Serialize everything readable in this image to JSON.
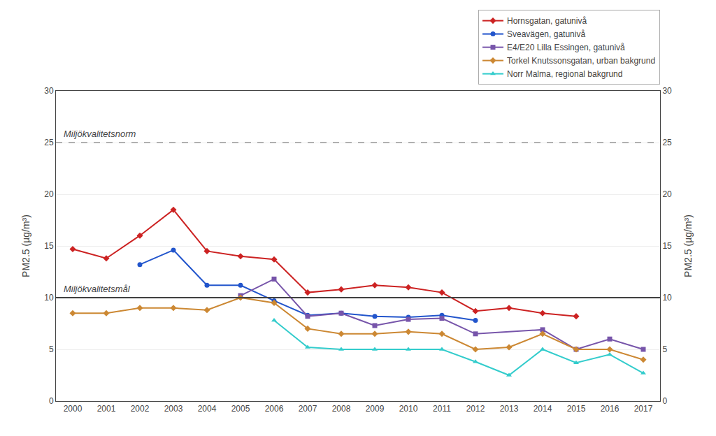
{
  "chart_data": {
    "type": "line",
    "y_label": "PM2.5 (µg/m³)",
    "y2_label": "PM2.5 (µg/m³)",
    "x": [
      2000,
      2001,
      2002,
      2003,
      2004,
      2005,
      2006,
      2007,
      2008,
      2009,
      2010,
      2011,
      2012,
      2013,
      2014,
      2015,
      2016,
      2017
    ],
    "xlim": [
      1999.5,
      2017.5
    ],
    "xticks": [
      2000,
      2001,
      2002,
      2003,
      2004,
      2005,
      2006,
      2007,
      2008,
      2009,
      2010,
      2011,
      2012,
      2013,
      2014,
      2015,
      2016,
      2017
    ],
    "ylim": [
      0,
      30
    ],
    "yticks": [
      0,
      5,
      10,
      15,
      20,
      25,
      30
    ],
    "y2lim": [
      0,
      30
    ],
    "y2ticks": [
      0,
      5,
      10,
      15,
      20,
      25,
      30
    ],
    "grid": true,
    "legend": "upper right",
    "series": [
      {
        "name": "Hornsgatan, gatunivå",
        "color": "#cc2222",
        "marker": "diamond",
        "line_style": "solid",
        "values": [
          14.7,
          13.8,
          16.0,
          18.5,
          14.5,
          14.0,
          13.7,
          10.5,
          10.8,
          11.2,
          11.0,
          10.5,
          8.7,
          9.0,
          8.5,
          8.2,
          null,
          null
        ]
      },
      {
        "name": "Sveavägen, gatunivå",
        "color": "#2255cc",
        "marker": "circle",
        "line_style": "solid",
        "values": [
          null,
          null,
          13.2,
          14.6,
          11.2,
          11.2,
          9.7,
          8.3,
          8.5,
          8.2,
          8.1,
          8.3,
          7.8,
          null,
          null,
          null,
          null,
          null
        ]
      },
      {
        "name": "E4/E20 Lilla Essingen, gatunivå",
        "color": "#7755aa",
        "marker": "square",
        "line_style": "solid",
        "values": [
          null,
          null,
          null,
          null,
          null,
          10.2,
          11.8,
          8.2,
          8.5,
          7.3,
          7.9,
          8.0,
          6.5,
          null,
          6.9,
          5.0,
          6.0,
          5.0
        ]
      },
      {
        "name": "Torkel Knutssonsgatan, urban bakgrund",
        "color": "#cc8833",
        "marker": "diamond",
        "line_style": "solid",
        "values": [
          8.5,
          8.5,
          9.0,
          9.0,
          8.8,
          10.0,
          9.5,
          7.0,
          6.5,
          6.5,
          6.7,
          6.5,
          5.0,
          5.2,
          6.5,
          5.0,
          5.0,
          4.0
        ]
      },
      {
        "name": "Norr Malma, regional bakgrund",
        "color": "#33cccc",
        "marker": "triangle-up",
        "line_style": "solid",
        "values": [
          null,
          null,
          null,
          null,
          null,
          null,
          7.8,
          5.2,
          5.0,
          5.0,
          5.0,
          5.0,
          3.8,
          2.5,
          5.0,
          3.7,
          4.5,
          2.7
        ]
      }
    ],
    "reference_lines": [
      {
        "y": 25,
        "label": "Miljökvalitetsnorm",
        "color": "#b0b0b0",
        "line_style": "dashed"
      },
      {
        "y": 10,
        "label": "Miljökvalitetsmål",
        "color": "#404040",
        "line_style": "solid"
      }
    ]
  }
}
